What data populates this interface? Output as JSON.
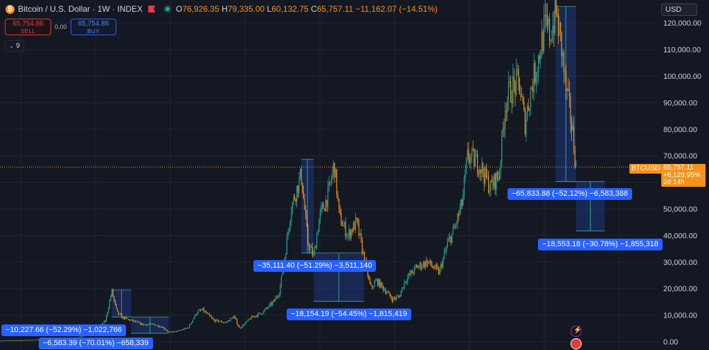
{
  "header": {
    "title": "Bitcoin / U.S. Dollar · 1W · INDEX",
    "ohlc": {
      "o_label": "O",
      "o": "76,926.35",
      "h_label": "H",
      "h": "79,335.00",
      "l_label": "L",
      "l": "60,132.75",
      "c_label": "C",
      "c": "65,757.11",
      "change": "−11,162.07 (−14.51%)"
    }
  },
  "trade": {
    "sell_price": "65,754.86",
    "sell_label": "SELL",
    "spread": "0.00",
    "buy_price": "65,754.86",
    "buy_label": "BUY"
  },
  "indicators_toggle": {
    "count": "9"
  },
  "currency": {
    "value": "USD"
  },
  "price_tag": {
    "symbol": "BTCUSD",
    "price": "65,757.11",
    "change_pct": "+6,129.95%",
    "countdown": "2d 14h"
  },
  "colors": {
    "up": "#26a69a",
    "down": "#f7931a",
    "bg": "#141823",
    "measure_fill": "#2962ff",
    "measure_label": "#2962ff"
  },
  "icons": [
    "bitcoin-logo-icon",
    "flag-icon",
    "eye-icon",
    "chevron-down-icon",
    "lightning-icon",
    "us-flag-icon"
  ],
  "chart_data": {
    "type": "candlestick",
    "y_axis": {
      "ticks": [
        0,
        10000,
        20000,
        30000,
        40000,
        50000,
        60000,
        70000,
        80000,
        90000,
        100000,
        110000,
        120000
      ],
      "tick_labels": [
        "0.00",
        "10,000.00",
        "20,000.00",
        "30,000.00",
        "40,000.00",
        "50,000.00",
        "60,000.00",
        "70,000.00",
        "80,000.00",
        "90,000.00",
        "100,000.00",
        "110,000.00",
        "120,000.00"
      ],
      "ylim": [
        -1000,
        128000
      ],
      "position": "right"
    },
    "last_price": 65757.11,
    "grid": true,
    "series_points_approx_close": [
      [
        2016.0,
        430
      ],
      [
        2016.5,
        650
      ],
      [
        2017.0,
        1000
      ],
      [
        2017.3,
        1200
      ],
      [
        2017.5,
        2500
      ],
      [
        2017.7,
        4300
      ],
      [
        2017.85,
        8000
      ],
      [
        2017.96,
        19000
      ],
      [
        2018.05,
        11000
      ],
      [
        2018.15,
        9000
      ],
      [
        2018.3,
        8000
      ],
      [
        2018.5,
        6500
      ],
      [
        2018.7,
        6500
      ],
      [
        2018.85,
        5500
      ],
      [
        2018.96,
        3500
      ],
      [
        2019.1,
        3900
      ],
      [
        2019.3,
        5300
      ],
      [
        2019.45,
        11000
      ],
      [
        2019.55,
        12000
      ],
      [
        2019.75,
        8000
      ],
      [
        2019.96,
        7200
      ],
      [
        2020.1,
        9500
      ],
      [
        2020.2,
        5000
      ],
      [
        2020.4,
        9000
      ],
      [
        2020.6,
        11000
      ],
      [
        2020.8,
        15000
      ],
      [
        2020.9,
        19000
      ],
      [
        2021.0,
        33000
      ],
      [
        2021.1,
        50000
      ],
      [
        2021.28,
        63000
      ],
      [
        2021.4,
        37000
      ],
      [
        2021.5,
        32000
      ],
      [
        2021.6,
        47000
      ],
      [
        2021.75,
        55000
      ],
      [
        2021.86,
        67000
      ],
      [
        2021.95,
        47000
      ],
      [
        2022.1,
        40000
      ],
      [
        2022.25,
        45000
      ],
      [
        2022.4,
        30000
      ],
      [
        2022.5,
        20000
      ],
      [
        2022.6,
        23000
      ],
      [
        2022.75,
        19500
      ],
      [
        2022.88,
        16000
      ],
      [
        2023.0,
        17000
      ],
      [
        2023.1,
        23000
      ],
      [
        2023.3,
        28000
      ],
      [
        2023.5,
        30000
      ],
      [
        2023.7,
        26000
      ],
      [
        2023.85,
        37000
      ],
      [
        2023.96,
        42000
      ],
      [
        2024.1,
        52000
      ],
      [
        2024.2,
        70000
      ],
      [
        2024.4,
        67000
      ],
      [
        2024.6,
        58000
      ],
      [
        2024.75,
        63000
      ],
      [
        2024.86,
        90000
      ],
      [
        2024.96,
        95000
      ],
      [
        2025.1,
        98000
      ],
      [
        2025.2,
        82000
      ],
      [
        2025.3,
        94000
      ],
      [
        2025.45,
        108000
      ],
      [
        2025.55,
        118000
      ],
      [
        2025.65,
        116000
      ],
      [
        2025.75,
        124000
      ],
      [
        2025.85,
        110000
      ],
      [
        2025.92,
        95000
      ],
      [
        2025.98,
        88000
      ],
      [
        2026.05,
        76926
      ],
      [
        2026.1,
        65757
      ]
    ],
    "measurements": [
      {
        "label": "−10,227.66 (−52.29%) −1,022,766"
      },
      {
        "label": "−6,583.39 (−70.01%) −658,339"
      },
      {
        "label": "−35,111.40 (−51.29%) −3,511,140"
      },
      {
        "label": "−18,154.19 (−54.45%) −1,815,419"
      },
      {
        "label": "−65,833.88 (−52.12%) −6,583,388"
      },
      {
        "label": "−18,553.18 (−30.78%) −1,855,318"
      }
    ]
  }
}
